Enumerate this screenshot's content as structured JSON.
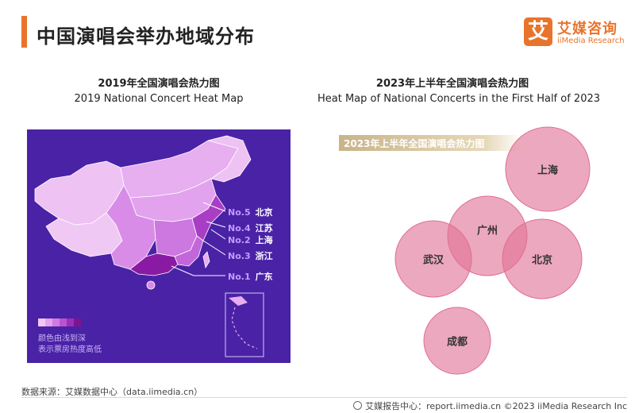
{
  "header": {
    "title": "中国演唱会举办地域分布",
    "logo_mark": "艾",
    "logo_cn": "艾媒咨询",
    "logo_en": "iiMedia Research"
  },
  "left_panel": {
    "title_cn": "2019年全国演唱会热力图",
    "title_en": "2019 National Concert Heat Map",
    "legend_line1": "颜色由浅到深",
    "legend_line2": "表示票房热度高低",
    "legend_colors": [
      "#f0c8f4",
      "#e2a2ee",
      "#cf7be2",
      "#b954d0",
      "#9c2fb5",
      "#7c158f"
    ]
  },
  "right_panel": {
    "title_cn": "2023年上半年全国演唱会热力图",
    "title_en": "Heat Map of National Concerts in the First Half of 2023",
    "banner": "2023年上半年全国演唱会热力图"
  },
  "chart_data": [
    {
      "type": "heatmap",
      "title": "2019 National Concert Heat Map",
      "rankings": [
        {
          "rank": "No.5",
          "city": "北京"
        },
        {
          "rank": "No.4",
          "city": "江苏"
        },
        {
          "rank": "No.2",
          "city": "上海"
        },
        {
          "rank": "No.3",
          "city": "浙江"
        },
        {
          "rank": "No.1",
          "city": "广东"
        }
      ]
    },
    {
      "type": "scatter",
      "title": "Heat Map of National Concerts in the First Half of 2023",
      "bubbles": [
        {
          "label": "上海"
        },
        {
          "label": "广州"
        },
        {
          "label": "武汉"
        },
        {
          "label": "北京"
        },
        {
          "label": "成都"
        }
      ],
      "colors": {
        "fill": "#e17396",
        "stroke": "#e06e91"
      }
    }
  ],
  "source": "数据来源：艾媒数据中心（data.iimedia.cn）",
  "footer": "艾媒报告中心：report.iimedia.cn  ©2023  iiMedia Research  Inc"
}
